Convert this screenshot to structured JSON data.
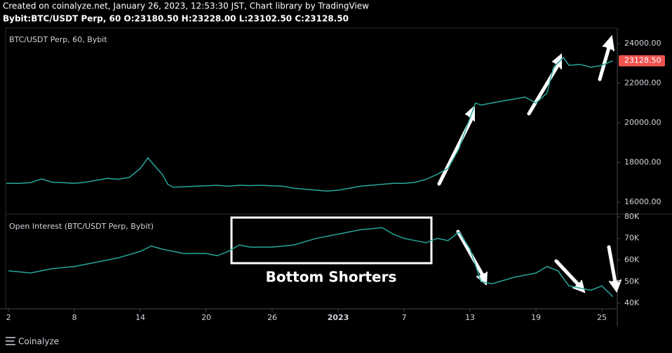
{
  "header": {
    "created": "Created on coinalyze.net, January 26, 2023, 12:53:30 JST, Chart library by TradingView",
    "symbol": "Bybit:BTC/USDT Perp, 60 O:23180.50 H:23228.00 L:23102.50 C:23128.50"
  },
  "chart_data": [
    {
      "type": "line",
      "title": "BTC/USDT Perp, 60, Bybit",
      "color": "#26a69a",
      "xlim": [
        1.74,
        57.4
      ],
      "x": [
        1.8,
        3,
        4,
        5,
        6,
        7,
        8,
        9,
        10,
        11,
        12,
        13,
        14,
        14.7,
        15.5,
        16,
        16.5,
        17,
        18,
        19,
        20,
        21,
        22,
        23,
        24,
        25,
        26,
        27,
        28,
        29,
        30,
        31,
        32,
        33,
        34,
        35,
        36,
        37,
        38,
        39,
        40,
        41,
        42,
        43,
        43.5,
        44.5,
        45,
        46,
        47,
        48,
        49,
        50,
        51,
        51.6,
        52.5,
        53,
        54,
        55,
        56,
        57
      ],
      "values": [
        16950,
        16950,
        16980,
        17170,
        17000,
        16980,
        16950,
        17000,
        17100,
        17200,
        17150,
        17250,
        17700,
        18230,
        17700,
        17400,
        16900,
        16750,
        16780,
        16800,
        16820,
        16850,
        16800,
        16850,
        16830,
        16850,
        16820,
        16800,
        16700,
        16650,
        16600,
        16560,
        16600,
        16700,
        16800,
        16850,
        16900,
        16950,
        16950,
        17000,
        17150,
        17400,
        17700,
        18700,
        19500,
        21000,
        20900,
        21000,
        21100,
        21200,
        21300,
        21000,
        21500,
        22800,
        23300,
        22900,
        22950,
        22800,
        22900,
        23128.5
      ],
      "ylim": [
        15398,
        24779
      ],
      "yticks": [
        {
          "value": 16000,
          "label": "16000.00"
        },
        {
          "value": 18000,
          "label": "18000.00"
        },
        {
          "value": 20000,
          "label": "20000.00"
        },
        {
          "value": 22000,
          "label": "22000.00"
        },
        {
          "value": 24000,
          "label": "24000.00"
        }
      ],
      "last_value": {
        "value": 23128.5,
        "label": "23128.50"
      },
      "last_color": "#ef5350"
    },
    {
      "type": "line",
      "title": "Open Interest (BTC/USDT Perp, Bybit)",
      "color": "#26a69a",
      "annotation": "Bottom Shorters",
      "xlim": [
        1.74,
        57.4
      ],
      "x": [
        2,
        4,
        6,
        8,
        10,
        12,
        14,
        15,
        16,
        18,
        20,
        21,
        22,
        23,
        24,
        26,
        28,
        30,
        32,
        34,
        36,
        37,
        38,
        39,
        40,
        41,
        42,
        43,
        44,
        45,
        46,
        48,
        50,
        51,
        52,
        53,
        54,
        55,
        56,
        57
      ],
      "values": [
        55000,
        54000,
        56000,
        57000,
        59000,
        61000,
        64000,
        66500,
        65000,
        63000,
        63000,
        62000,
        64000,
        67000,
        66000,
        66000,
        67000,
        70000,
        72000,
        74000,
        75000,
        72000,
        70000,
        69000,
        68000,
        70000,
        69000,
        73000,
        65000,
        50000,
        49000,
        52000,
        54000,
        57000,
        55000,
        48000,
        47000,
        46000,
        48000,
        43000
      ],
      "ylim": [
        37400,
        81300
      ],
      "yticks": [
        {
          "value": 40000,
          "label": "40K"
        },
        {
          "value": 50000,
          "label": "50K"
        },
        {
          "value": 60000,
          "label": "60K"
        },
        {
          "value": 70000,
          "label": "70K"
        },
        {
          "value": 80000,
          "label": "80K"
        }
      ],
      "xticks": [
        2,
        8,
        14,
        20,
        26,
        {
          "value": 32,
          "label": "2023"
        },
        {
          "value": 38,
          "label": "7"
        },
        {
          "value": 44,
          "label": "13"
        },
        {
          "value": 50,
          "label": "19"
        },
        {
          "value": 56,
          "label": "25"
        }
      ]
    }
  ],
  "footer": {
    "brand": "Coinalyze"
  }
}
